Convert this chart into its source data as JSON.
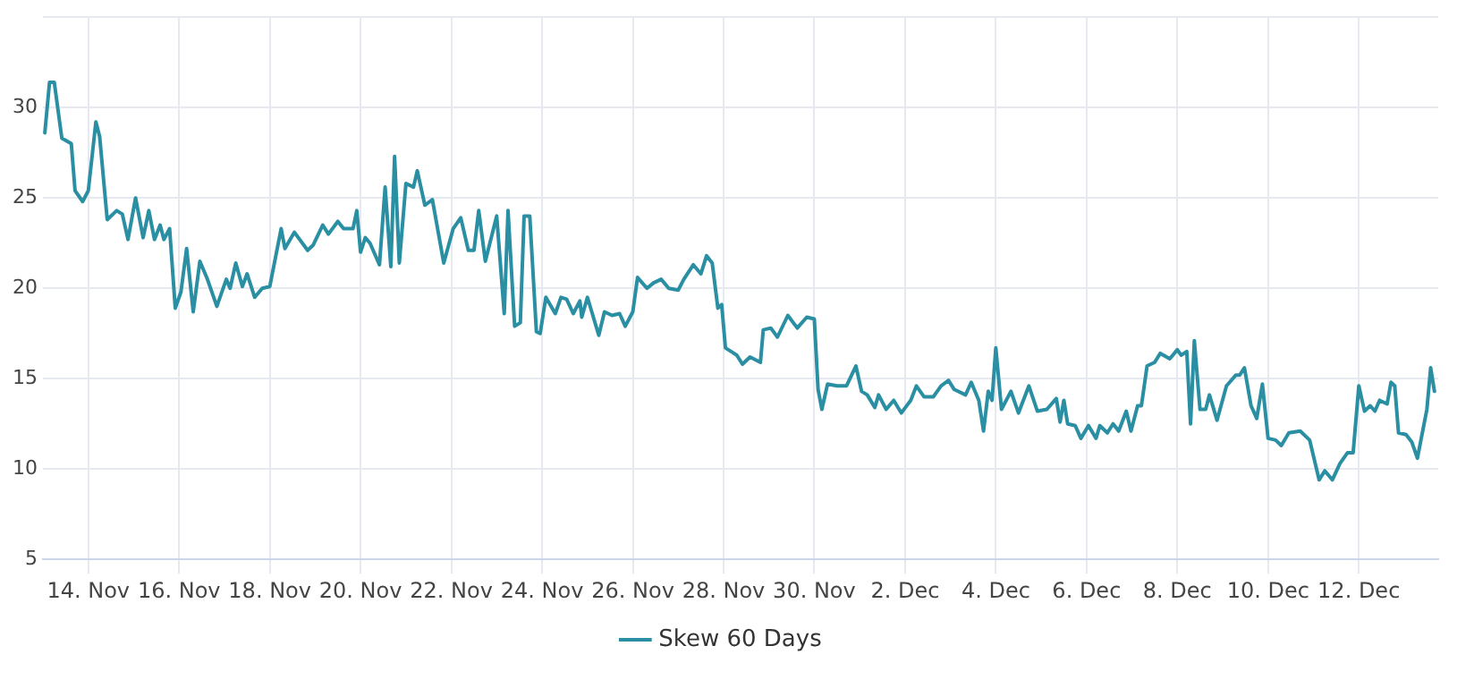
{
  "chart_data": {
    "type": "line",
    "legend": "bottom",
    "grid": true,
    "marker": "none",
    "line_style": "solid",
    "xlim": [
      "--11-13T00:00",
      "--12-13T18:00"
    ],
    "xticks": [
      {
        "value": "--11-14",
        "label": "14. Nov"
      },
      {
        "value": "--11-16",
        "label": "16. Nov"
      },
      {
        "value": "--11-18",
        "label": "18. Nov"
      },
      {
        "value": "--11-20",
        "label": "20. Nov"
      },
      {
        "value": "--11-22",
        "label": "22. Nov"
      },
      {
        "value": "--11-24",
        "label": "24. Nov"
      },
      {
        "value": "--11-26",
        "label": "26. Nov"
      },
      {
        "value": "--11-28",
        "label": "28. Nov"
      },
      {
        "value": "--11-30",
        "label": "30. Nov"
      },
      {
        "value": "--12-02",
        "label": "2. Dec"
      },
      {
        "value": "--12-04",
        "label": "4. Dec"
      },
      {
        "value": "--12-06",
        "label": "6. Dec"
      },
      {
        "value": "--12-08",
        "label": "8. Dec"
      },
      {
        "value": "--12-10",
        "label": "10. Dec"
      },
      {
        "value": "--12-12",
        "label": "12. Dec"
      }
    ],
    "ylim": [
      5,
      35
    ],
    "yticks": [
      5,
      10,
      15,
      20,
      25,
      30,
      {
        "value": 35,
        "label": null
      }
    ],
    "series": [
      {
        "name": "Skew 60 Days",
        "color": "#2a8fa3",
        "x": [
          "--11-13T01:00",
          "--11-13T03:30",
          "--11-13T06:00",
          "--11-13T10:00",
          "--11-13T15:00",
          "--11-13T17:00",
          "--11-13T21:00",
          "--11-14T00:00",
          "--11-14T04:00",
          "--11-14T06:00",
          "--11-14T10:00",
          "--11-14T15:00",
          "--11-14T18:00",
          "--11-14T21:00",
          "--11-15T01:00",
          "--11-15T05:00",
          "--11-15T08:00",
          "--11-15T11:00",
          "--11-15T14:00",
          "--11-15T16:00",
          "--11-15T19:00",
          "--11-15T22:00",
          "--11-16T01:00",
          "--11-16T04:00",
          "--11-16T07:30",
          "--11-16T11:00",
          "--11-16T15:00",
          "--11-16T20:00",
          "--11-17T01:00",
          "--11-17T03:00",
          "--11-17T06:00",
          "--11-17T09:30",
          "--11-17T12:00",
          "--11-17T16:00",
          "--11-17T20:00",
          "--11-18T00:00",
          "--11-18T06:00",
          "--11-18T08:00",
          "--11-18T13:00",
          "--11-18T20:00",
          "--11-18T23:00",
          "--11-19T04:00",
          "--11-19T07:00",
          "--11-19T12:00",
          "--11-19T15:00",
          "--11-19T20:00",
          "--11-19T22:00",
          "--11-20T00:00",
          "--11-20T02:30",
          "--11-20T05:00",
          "--11-20T10:00",
          "--11-20T13:00",
          "--11-20T16:00",
          "--11-20T18:00",
          "--11-20T20:30",
          "--11-21T00:00",
          "--11-21T04:00",
          "--11-21T06:00",
          "--11-21T10:00",
          "--11-21T14:00",
          "--11-21T20:00",
          "--11-22T01:00",
          "--11-22T05:00",
          "--11-22T09:00",
          "--11-22T12:00",
          "--11-22T14:30",
          "--11-22T18:00",
          "--11-23T00:00",
          "--11-23T04:00",
          "--11-23T06:00",
          "--11-23T09:30",
          "--11-23T12:30",
          "--11-23T14:30",
          "--11-23T17:30",
          "--11-23T21:00",
          "--11-23T23:00",
          "--11-24T02:00",
          "--11-24T07:00",
          "--11-24T10:00",
          "--11-24T13:00",
          "--11-24T16:30",
          "--11-24T20:00",
          "--11-24T21:00",
          "--11-25T00:00",
          "--11-25T06:00",
          "--11-25T09:00",
          "--11-25T13:00",
          "--11-25T17:00",
          "--11-25T20:00",
          "--11-26T00:00",
          "--11-26T02:30",
          "--11-26T07:30",
          "--11-26T11:00",
          "--11-26T15:00",
          "--11-26T19:00",
          "--11-27T00:00",
          "--11-27T03:00",
          "--11-27T08:00",
          "--11-27T12:00",
          "--11-27T15:00",
          "--11-27T18:00",
          "--11-27T21:00",
          "--11-27T23:00",
          "--11-28T01:00",
          "--11-28T04:00",
          "--11-28T07:00",
          "--11-28T10:00",
          "--11-28T14:00",
          "--11-28T19:30",
          "--11-28T21:00",
          "--11-29T01:00",
          "--11-29T04:30",
          "--11-29T10:00",
          "--11-29T15:00",
          "--11-29T20:00",
          "--11-30T00:00",
          "--11-30T02:00",
          "--11-30T04:00",
          "--11-30T07:00",
          "--11-30T12:00",
          "--11-30T17:00",
          "--11-30T22:00",
          "--12-01T01:00",
          "--12-01T04:00",
          "--12-01T08:00",
          "--12-01T10:00",
          "--12-01T14:00",
          "--12-01T18:00",
          "--12-01T22:00",
          "--12-02T03:00",
          "--12-02T06:00",
          "--12-02T10:00",
          "--12-02T15:00",
          "--12-02T19:00",
          "--12-02T23:00",
          "--12-03T02:00",
          "--12-03T08:00",
          "--12-03T11:00",
          "--12-03T15:00",
          "--12-03T17:30",
          "--12-03T20:00",
          "--12-03T22:00",
          "--12-04T00:00",
          "--12-04T03:00",
          "--12-04T08:00",
          "--12-04T12:00",
          "--12-04T17:30",
          "--12-04T22:00",
          "--12-05T03:00",
          "--12-05T08:00",
          "--12-05T10:00",
          "--12-05T12:00",
          "--12-05T14:00",
          "--12-05T18:00",
          "--12-05T21:00",
          "--12-06T01:00",
          "--12-06T05:00",
          "--12-06T07:00",
          "--12-06T11:00",
          "--12-06T14:00",
          "--12-06T17:00",
          "--12-06T21:00",
          "--12-06T23:30",
          "--12-07T03:00",
          "--12-07T05:00",
          "--12-07T08:00",
          "--12-07T12:00",
          "--12-07T15:00",
          "--12-07T20:00",
          "--12-08T00:00",
          "--12-08T02:00",
          "--12-08T05:00",
          "--12-08T07:00",
          "--12-08T09:00",
          "--12-08T12:00",
          "--12-08T15:00",
          "--12-08T17:00",
          "--12-08T21:00",
          "--12-09T02:00",
          "--12-09T07:00",
          "--12-09T09:00",
          "--12-09T11:30",
          "--12-09T15:00",
          "--12-09T18:00",
          "--12-09T21:00",
          "--12-10T00:00",
          "--12-10T04:00",
          "--12-10T07:00",
          "--12-10T11:00",
          "--12-10T17:00",
          "--12-10T22:00",
          "--12-11T03:00",
          "--12-11T06:00",
          "--12-11T10:00",
          "--12-11T14:00",
          "--12-11T18:00",
          "--12-11T21:00",
          "--12-12T00:00",
          "--12-12T03:00",
          "--12-12T06:00",
          "--12-12T08:30",
          "--12-12T11:00",
          "--12-12T15:00",
          "--12-12T17:00",
          "--12-12T19:00",
          "--12-12T21:00",
          "--12-13T01:00",
          "--12-13T04:00",
          "--12-13T07:00",
          "--12-13T12:00",
          "--12-13T14:00",
          "--12-13T16:00"
        ],
        "values": [
          28.6,
          31.4,
          31.4,
          28.3,
          28.0,
          25.4,
          24.8,
          25.4,
          29.2,
          28.4,
          23.8,
          24.3,
          24.1,
          22.7,
          25.0,
          22.8,
          24.3,
          22.7,
          23.5,
          22.7,
          23.3,
          18.9,
          19.8,
          22.2,
          18.7,
          21.5,
          20.5,
          19.0,
          20.5,
          20.0,
          21.4,
          20.1,
          20.8,
          19.5,
          20.0,
          20.1,
          23.3,
          22.2,
          23.1,
          22.1,
          22.4,
          23.5,
          23.0,
          23.7,
          23.3,
          23.3,
          24.3,
          22.0,
          22.8,
          22.5,
          21.3,
          25.6,
          21.2,
          27.3,
          21.4,
          25.8,
          25.6,
          26.5,
          24.6,
          24.9,
          21.4,
          23.3,
          23.9,
          22.1,
          22.1,
          24.3,
          21.5,
          24.0,
          18.6,
          24.3,
          17.9,
          18.1,
          24.0,
          24.0,
          17.6,
          17.5,
          19.5,
          18.6,
          19.5,
          19.4,
          18.6,
          19.3,
          18.4,
          19.5,
          17.4,
          18.7,
          18.5,
          18.6,
          17.9,
          18.7,
          20.6,
          20.0,
          20.3,
          20.5,
          20.0,
          19.9,
          20.5,
          21.3,
          20.8,
          21.8,
          21.4,
          18.9,
          19.1,
          16.7,
          16.5,
          16.3,
          15.8,
          16.2,
          15.9,
          17.7,
          17.8,
          17.3,
          18.5,
          17.8,
          18.4,
          18.3,
          14.4,
          13.3,
          14.7,
          14.6,
          14.6,
          15.7,
          14.3,
          14.1,
          13.4,
          14.1,
          13.3,
          13.8,
          13.1,
          13.8,
          14.6,
          14.0,
          14.0,
          14.6,
          14.9,
          14.4,
          14.1,
          14.8,
          13.8,
          12.1,
          14.3,
          13.8,
          16.7,
          13.3,
          14.3,
          13.1,
          14.6,
          13.2,
          13.3,
          13.9,
          12.6,
          13.8,
          12.5,
          12.4,
          11.7,
          12.4,
          11.7,
          12.4,
          12.0,
          12.5,
          12.1,
          13.2,
          12.1,
          13.5,
          13.5,
          15.7,
          15.9,
          16.4,
          16.1,
          16.6,
          16.3,
          16.5,
          12.5,
          17.1,
          13.3,
          13.3,
          14.1,
          12.7,
          14.6,
          15.2,
          15.2,
          15.6,
          13.5,
          12.8,
          14.7,
          11.7,
          11.6,
          11.3,
          12.0,
          12.1,
          11.6,
          9.4,
          9.9,
          9.4,
          10.3,
          10.9,
          10.9,
          14.6,
          13.2,
          13.5,
          13.2,
          13.8,
          13.6,
          14.8,
          14.6,
          12.0,
          11.9,
          11.5,
          10.6,
          13.3,
          15.6,
          14.3
        ]
      }
    ]
  }
}
